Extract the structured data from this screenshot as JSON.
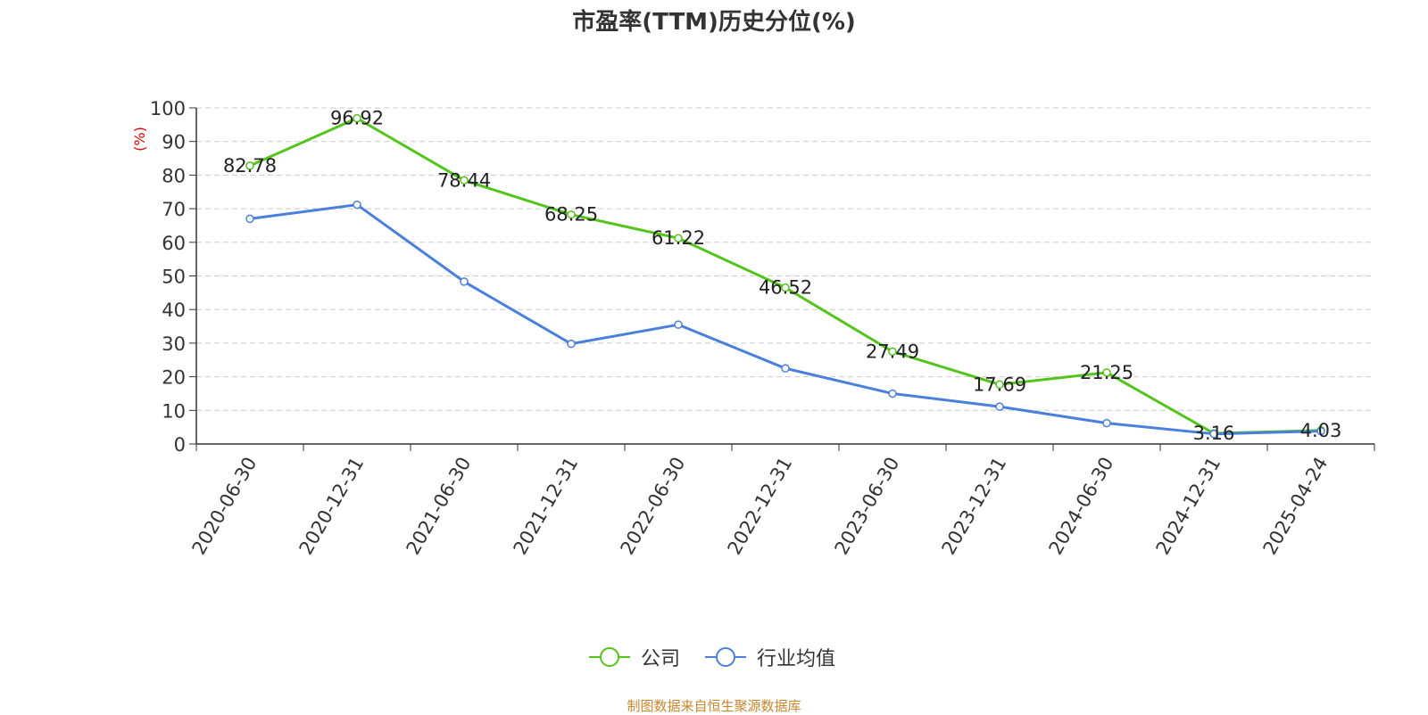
{
  "chart_data": {
    "type": "line",
    "title": "市盈率(TTM)历史分位(%)",
    "ylabel": "(%)",
    "xlabel": "",
    "ylim": [
      0,
      100
    ],
    "yticks": [
      0,
      10,
      20,
      30,
      40,
      50,
      60,
      70,
      80,
      90,
      100
    ],
    "grid": true,
    "legend_position": "bottom-center",
    "categories": [
      "2020-06-30",
      "2020-12-31",
      "2021-06-30",
      "2021-12-31",
      "2022-06-30",
      "2022-12-31",
      "2023-06-30",
      "2023-12-31",
      "2024-06-30",
      "2024-12-31",
      "2025-04-24"
    ],
    "series": [
      {
        "name": "公司",
        "color": "#52c41a",
        "values": [
          82.78,
          96.92,
          78.44,
          68.25,
          61.22,
          46.52,
          27.49,
          17.69,
          21.25,
          3.16,
          4.03
        ],
        "labels": [
          "82.78",
          "96.92",
          "78.44",
          "68.25",
          "61.22",
          "46.52",
          "27.49",
          "17.69",
          "21.25",
          "3.16",
          "4.03"
        ]
      },
      {
        "name": "行业均值",
        "color": "#4a7fdc",
        "values": [
          67.0,
          71.2,
          48.3,
          29.8,
          35.5,
          22.5,
          15.0,
          11.1,
          6.2,
          3.0,
          3.8
        ]
      }
    ]
  },
  "source": "制图数据来自恒生聚源数据库"
}
